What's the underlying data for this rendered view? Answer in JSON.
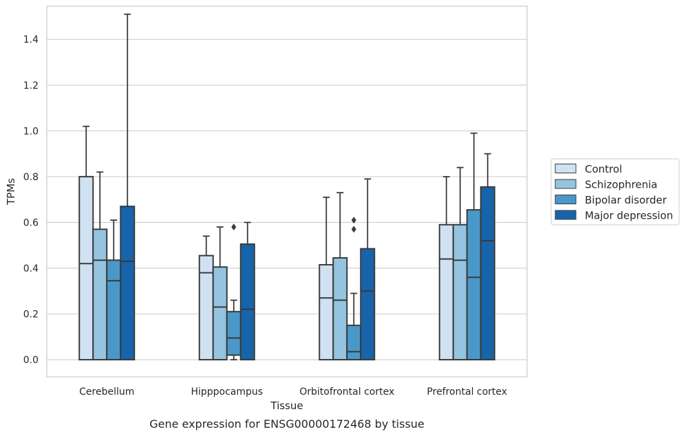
{
  "caption": "Gene expression for ENSG00000172468 by tissue",
  "chart_data": {
    "type": "boxplot",
    "title": "",
    "xlabel": "Tissue",
    "ylabel": "TPMs",
    "ylim": [
      -0.075,
      1.545
    ],
    "yticks": [
      "0.0",
      "0.2",
      "0.4",
      "0.6",
      "0.8",
      "1.0",
      "1.2",
      "1.4"
    ],
    "grid": "horizontal",
    "legend_position": "right",
    "categories": [
      "Cerebellum",
      "Hipppocampus",
      "Orbitofrontal cortex",
      "Prefrontal cortex"
    ],
    "series": [
      {
        "name": "Control",
        "color": "#d0e1f2",
        "boxes": [
          {
            "min": 0.0,
            "q1": 0.0,
            "median": 0.42,
            "q3": 0.8,
            "max": 1.02,
            "outliers": []
          },
          {
            "min": 0.0,
            "q1": 0.0,
            "median": 0.38,
            "q3": 0.455,
            "max": 0.54,
            "outliers": []
          },
          {
            "min": 0.0,
            "q1": 0.0,
            "median": 0.27,
            "q3": 0.415,
            "max": 0.71,
            "outliers": []
          },
          {
            "min": 0.0,
            "q1": 0.0,
            "median": 0.44,
            "q3": 0.59,
            "max": 0.8,
            "outliers": []
          }
        ]
      },
      {
        "name": "Schizophrenia",
        "color": "#94c4df",
        "boxes": [
          {
            "min": 0.0,
            "q1": 0.0,
            "median": 0.435,
            "q3": 0.57,
            "max": 0.82,
            "outliers": []
          },
          {
            "min": 0.0,
            "q1": 0.0,
            "median": 0.23,
            "q3": 0.405,
            "max": 0.58,
            "outliers": []
          },
          {
            "min": 0.0,
            "q1": 0.0,
            "median": 0.26,
            "q3": 0.445,
            "max": 0.73,
            "outliers": []
          },
          {
            "min": 0.0,
            "q1": 0.0,
            "median": 0.435,
            "q3": 0.59,
            "max": 0.84,
            "outliers": []
          }
        ]
      },
      {
        "name": "Bipolar disorder",
        "color": "#4a98c9",
        "boxes": [
          {
            "min": 0.0,
            "q1": 0.0,
            "median": 0.345,
            "q3": 0.435,
            "max": 0.61,
            "outliers": []
          },
          {
            "min": 0.0,
            "q1": 0.02,
            "median": 0.095,
            "q3": 0.21,
            "max": 0.26,
            "outliers": [
              0.58
            ]
          },
          {
            "min": 0.0,
            "q1": 0.0,
            "median": 0.035,
            "q3": 0.15,
            "max": 0.29,
            "outliers": [
              0.57,
              0.61
            ]
          },
          {
            "min": 0.0,
            "q1": 0.0,
            "median": 0.36,
            "q3": 0.655,
            "max": 0.99,
            "outliers": []
          }
        ]
      },
      {
        "name": "Major depression",
        "color": "#1764ab",
        "boxes": [
          {
            "min": 0.0,
            "q1": 0.0,
            "median": 0.43,
            "q3": 0.67,
            "max": 1.51,
            "outliers": []
          },
          {
            "min": 0.0,
            "q1": 0.0,
            "median": 0.22,
            "q3": 0.505,
            "max": 0.6,
            "outliers": []
          },
          {
            "min": 0.0,
            "q1": 0.0,
            "median": 0.3,
            "q3": 0.485,
            "max": 0.79,
            "outliers": []
          },
          {
            "min": 0.0,
            "q1": 0.0,
            "median": 0.52,
            "q3": 0.755,
            "max": 0.9,
            "outliers": []
          }
        ]
      }
    ]
  }
}
